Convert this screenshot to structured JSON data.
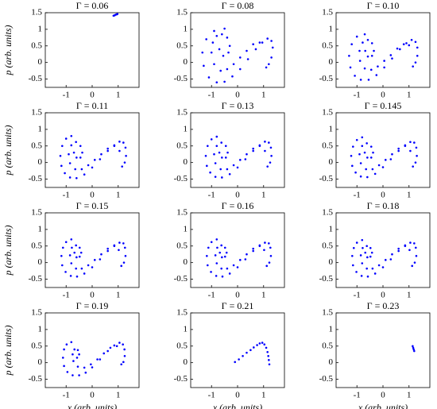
{
  "chart_data": [
    {
      "type": "scatter",
      "title": "Γ = 0.06",
      "ylabel": "p (arb. units)",
      "color": "#0000ff",
      "x": [
        0.82,
        0.86,
        0.9,
        0.94,
        0.97
      ],
      "values": [
        1.41,
        1.42,
        1.44,
        1.45,
        1.46
      ],
      "xlim": [
        -1.8,
        1.8
      ],
      "ylim": [
        -0.75,
        1.5
      ],
      "xticks": [
        -1,
        0,
        1
      ],
      "yticks": [
        -0.5,
        0,
        0.5,
        1,
        1.5
      ]
    },
    {
      "type": "scatter",
      "title": "Γ = 0.08",
      "color": "#0000ff",
      "x": [
        -0.5,
        -0.9,
        -1.2,
        -1.35,
        -1.3,
        -1.1,
        -0.8,
        -0.5,
        -0.2,
        0.1,
        0.4,
        0.7,
        0.95,
        1.15,
        1.3,
        1.35,
        1.3,
        1.2,
        1.1,
        0.85,
        0.6,
        0.35,
        0.1,
        -0.15,
        -0.4,
        -0.65,
        -0.9,
        -1.0,
        -0.95,
        -0.8,
        -0.6,
        -0.4,
        -0.3,
        -0.35,
        -0.55,
        -0.7
      ],
      "values": [
        1.02,
        0.95,
        0.7,
        0.3,
        -0.1,
        -0.45,
        -0.6,
        -0.58,
        -0.42,
        -0.2,
        0.1,
        0.4,
        0.6,
        0.72,
        0.65,
        0.45,
        0.15,
        -0.05,
        -0.15,
        0.6,
        0.55,
        0.35,
        0.15,
        -0.05,
        -0.2,
        -0.25,
        -0.05,
        0.3,
        0.6,
        0.8,
        0.85,
        0.75,
        0.5,
        0.3,
        0.2,
        0.4
      ],
      "xlim": [
        -1.8,
        1.8
      ],
      "ylim": [
        -0.75,
        1.5
      ],
      "xticks": [
        -1,
        0,
        1
      ],
      "yticks": [
        -0.5,
        0,
        0.5,
        1,
        1.5
      ]
    },
    {
      "type": "scatter",
      "title": "Γ = 0.10",
      "color": "#0000ff",
      "x": [
        -0.7,
        -1.0,
        -1.2,
        -1.3,
        -1.25,
        -1.08,
        -0.85,
        -0.55,
        -0.25,
        0.05,
        0.35,
        0.65,
        0.9,
        1.1,
        1.25,
        1.32,
        1.32,
        1.25,
        1.15,
        1.0,
        0.8,
        0.55,
        0.3,
        0.05,
        -0.2,
        -0.45,
        -0.7,
        -0.88,
        -0.9,
        -0.78,
        -0.58,
        -0.42,
        -0.35,
        -0.42,
        -0.58,
        -0.68
      ],
      "values": [
        0.85,
        0.78,
        0.55,
        0.2,
        -0.15,
        -0.4,
        -0.52,
        -0.52,
        -0.38,
        -0.15,
        0.12,
        0.4,
        0.58,
        0.68,
        0.62,
        0.45,
        0.2,
        0.0,
        -0.12,
        0.52,
        0.55,
        0.42,
        0.22,
        0.05,
        -0.12,
        -0.22,
        -0.18,
        0.05,
        0.35,
        0.6,
        0.68,
        0.58,
        0.35,
        0.2,
        0.18,
        0.35
      ],
      "xlim": [
        -1.8,
        1.8
      ],
      "ylim": [
        -0.75,
        1.5
      ],
      "xticks": [
        -1,
        0,
        1
      ],
      "yticks": [
        -0.5,
        0,
        0.5,
        1,
        1.5
      ]
    },
    {
      "type": "scatter",
      "title": "Γ = 0.11",
      "ylabel": "p (arb. units)",
      "color": "#0000ff",
      "x": [
        -0.8,
        -1.0,
        -1.15,
        -1.22,
        -1.18,
        -1.05,
        -0.85,
        -0.6,
        -0.3,
        0,
        0.3,
        0.6,
        0.85,
        1.05,
        1.2,
        1.28,
        1.3,
        1.25,
        1.15,
        1.05,
        0.85,
        0.6,
        0.35,
        0.1,
        -0.15,
        -0.4,
        -0.65,
        -0.85,
        -0.9,
        -0.8,
        -0.62,
        -0.45,
        -0.38,
        -0.45,
        -0.6,
        -0.7
      ],
      "values": [
        0.8,
        0.72,
        0.5,
        0.2,
        -0.1,
        -0.32,
        -0.45,
        -0.47,
        -0.36,
        -0.15,
        0.1,
        0.35,
        0.52,
        0.63,
        0.6,
        0.45,
        0.2,
        0.0,
        -0.12,
        0.35,
        0.5,
        0.42,
        0.25,
        0.08,
        -0.08,
        -0.2,
        -0.2,
        -0.02,
        0.25,
        0.52,
        0.62,
        0.5,
        0.3,
        0.15,
        0.15,
        0.3
      ],
      "xlim": [
        -1.8,
        1.8
      ],
      "ylim": [
        -0.75,
        1.5
      ],
      "xticks": [
        -1,
        0,
        1
      ],
      "yticks": [
        -0.5,
        0,
        0.5,
        1,
        1.5
      ]
    },
    {
      "type": "scatter",
      "title": "Γ = 0.13",
      "color": "#0000ff",
      "x": [
        -0.8,
        -1.0,
        -1.15,
        -1.22,
        -1.18,
        -1.05,
        -0.85,
        -0.6,
        -0.3,
        0,
        0.3,
        0.6,
        0.85,
        1.05,
        1.2,
        1.28,
        1.3,
        1.25,
        1.15,
        1.05,
        0.85,
        0.6,
        0.35,
        0.1,
        -0.15,
        -0.4,
        -0.65,
        -0.85,
        -0.9,
        -0.8,
        -0.62,
        -0.45,
        -0.38,
        -0.45,
        -0.6,
        -0.7
      ],
      "values": [
        0.78,
        0.7,
        0.5,
        0.2,
        -0.1,
        -0.3,
        -0.43,
        -0.45,
        -0.35,
        -0.15,
        0.1,
        0.35,
        0.52,
        0.63,
        0.6,
        0.45,
        0.2,
        0.0,
        -0.12,
        0.35,
        0.5,
        0.42,
        0.25,
        0.08,
        -0.08,
        -0.2,
        -0.2,
        -0.02,
        0.25,
        0.5,
        0.6,
        0.5,
        0.3,
        0.15,
        0.15,
        0.3
      ],
      "xlim": [
        -1.8,
        1.8
      ],
      "ylim": [
        -0.75,
        1.5
      ],
      "xticks": [
        -1,
        0,
        1
      ],
      "yticks": [
        -0.5,
        0,
        0.5,
        1,
        1.5
      ]
    },
    {
      "type": "scatter",
      "title": "Γ = 0.145",
      "color": "#0000ff",
      "x": [
        -0.8,
        -1.0,
        -1.15,
        -1.22,
        -1.18,
        -1.05,
        -0.85,
        -0.6,
        -0.3,
        0,
        0.3,
        0.6,
        0.85,
        1.05,
        1.2,
        1.28,
        1.3,
        1.25,
        1.15,
        1.05,
        0.85,
        0.6,
        0.35,
        0.1,
        -0.15,
        -0.4,
        -0.65,
        -0.85,
        -0.9,
        -0.8,
        -0.62,
        -0.45,
        -0.38,
        -0.45,
        -0.6,
        -0.7
      ],
      "values": [
        0.76,
        0.68,
        0.48,
        0.2,
        -0.1,
        -0.3,
        -0.42,
        -0.44,
        -0.34,
        -0.14,
        0.1,
        0.35,
        0.52,
        0.62,
        0.6,
        0.45,
        0.2,
        0.0,
        -0.12,
        0.35,
        0.5,
        0.42,
        0.25,
        0.08,
        -0.08,
        -0.2,
        -0.2,
        -0.02,
        0.25,
        0.5,
        0.58,
        0.48,
        0.3,
        0.15,
        0.15,
        0.3
      ],
      "xlim": [
        -1.8,
        1.8
      ],
      "ylim": [
        -0.75,
        1.5
      ],
      "xticks": [
        -1,
        0,
        1
      ],
      "yticks": [
        -0.5,
        0,
        0.5,
        1,
        1.5
      ]
    },
    {
      "type": "scatter",
      "title": "Γ = 0.15",
      "ylabel": "p (arb. units)",
      "color": "#0000ff",
      "x": [
        -0.8,
        -1.0,
        -1.12,
        -1.18,
        -1.15,
        -1.02,
        -0.82,
        -0.58,
        -0.3,
        0,
        0.3,
        0.6,
        0.85,
        1.05,
        1.2,
        1.26,
        1.28,
        1.22,
        1.12,
        1.02,
        0.85,
        0.6,
        0.35,
        0.1,
        -0.15,
        -0.4,
        -0.62,
        -0.8,
        -0.85,
        -0.78,
        -0.62,
        -0.48,
        -0.42,
        -0.48,
        -0.6,
        -0.68
      ],
      "values": [
        0.7,
        0.62,
        0.45,
        0.2,
        -0.08,
        -0.28,
        -0.4,
        -0.42,
        -0.33,
        -0.14,
        0.1,
        0.35,
        0.52,
        0.6,
        0.58,
        0.45,
        0.2,
        0.0,
        -0.1,
        0.38,
        0.5,
        0.42,
        0.25,
        0.08,
        -0.08,
        -0.18,
        -0.18,
        -0.02,
        0.22,
        0.45,
        0.52,
        0.45,
        0.3,
        0.18,
        0.16,
        0.3
      ],
      "xlim": [
        -1.8,
        1.8
      ],
      "ylim": [
        -0.75,
        1.5
      ],
      "xticks": [
        -1,
        0,
        1
      ],
      "yticks": [
        -0.5,
        0,
        0.5,
        1,
        1.5
      ]
    },
    {
      "type": "scatter",
      "title": "Γ = 0.16",
      "color": "#0000ff",
      "x": [
        -0.8,
        -1.0,
        -1.12,
        -1.18,
        -1.15,
        -1.02,
        -0.82,
        -0.58,
        -0.3,
        0,
        0.3,
        0.6,
        0.85,
        1.05,
        1.2,
        1.26,
        1.28,
        1.22,
        1.12,
        1.02,
        0.85,
        0.6,
        0.35,
        0.1,
        -0.15,
        -0.4,
        -0.62,
        -0.8,
        -0.85,
        -0.78,
        -0.62,
        -0.48,
        -0.42,
        -0.48,
        -0.6,
        -0.68
      ],
      "values": [
        0.7,
        0.62,
        0.45,
        0.2,
        -0.08,
        -0.28,
        -0.4,
        -0.42,
        -0.33,
        -0.14,
        0.1,
        0.35,
        0.52,
        0.6,
        0.58,
        0.45,
        0.2,
        0.0,
        -0.1,
        0.38,
        0.5,
        0.42,
        0.25,
        0.08,
        -0.08,
        -0.18,
        -0.18,
        -0.02,
        0.22,
        0.45,
        0.52,
        0.45,
        0.3,
        0.18,
        0.16,
        0.3
      ],
      "xlim": [
        -1.8,
        1.8
      ],
      "ylim": [
        -0.75,
        1.5
      ],
      "xticks": [
        -1,
        0,
        1
      ],
      "yticks": [
        -0.5,
        0,
        0.5,
        1,
        1.5
      ]
    },
    {
      "type": "scatter",
      "title": "Γ = 0.18",
      "color": "#0000ff",
      "x": [
        -0.8,
        -1.0,
        -1.12,
        -1.18,
        -1.15,
        -1.02,
        -0.82,
        -0.58,
        -0.3,
        0,
        0.3,
        0.6,
        0.85,
        1.05,
        1.2,
        1.26,
        1.28,
        1.22,
        1.12,
        1.02,
        0.85,
        0.6,
        0.35,
        0.1,
        -0.15,
        -0.4,
        -0.62,
        -0.8,
        -0.85,
        -0.78,
        -0.62,
        -0.48,
        -0.42,
        -0.48,
        -0.6,
        -0.68
      ],
      "values": [
        0.68,
        0.6,
        0.44,
        0.2,
        -0.08,
        -0.28,
        -0.4,
        -0.42,
        -0.33,
        -0.14,
        0.1,
        0.35,
        0.52,
        0.6,
        0.58,
        0.45,
        0.2,
        0.0,
        -0.1,
        0.38,
        0.5,
        0.42,
        0.25,
        0.08,
        -0.08,
        -0.18,
        -0.18,
        -0.02,
        0.22,
        0.44,
        0.5,
        0.44,
        0.3,
        0.18,
        0.16,
        0.3
      ],
      "xlim": [
        -1.8,
        1.8
      ],
      "ylim": [
        -0.75,
        1.5
      ],
      "xticks": [
        -1,
        0,
        1
      ],
      "yticks": [
        -0.5,
        0,
        0.5,
        1,
        1.5
      ]
    },
    {
      "type": "scatter",
      "title": "Γ = 0.19",
      "xlabel": "x (arb. units)",
      "ylabel": "p (arb. units)",
      "color": "#0000ff",
      "x": [
        -0.8,
        -0.98,
        -1.08,
        -1.12,
        -1.08,
        -0.95,
        -0.75,
        -0.5,
        -0.25,
        0,
        0.3,
        0.6,
        0.85,
        1.05,
        1.18,
        1.24,
        1.25,
        1.2,
        1.12,
        0.95,
        0.7,
        0.45,
        0.2,
        -0.05,
        -0.3,
        -0.55,
        -0.72,
        -0.75,
        -0.68,
        -0.55,
        -0.5,
        -0.58
      ],
      "values": [
        0.62,
        0.55,
        0.4,
        0.15,
        -0.1,
        -0.28,
        -0.38,
        -0.38,
        -0.3,
        -0.14,
        0.1,
        0.35,
        0.52,
        0.6,
        0.55,
        0.4,
        0.2,
        0.02,
        -0.05,
        0.5,
        0.45,
        0.28,
        0.1,
        -0.05,
        -0.15,
        -0.12,
        0.05,
        0.25,
        0.4,
        0.38,
        0.25,
        0.15
      ],
      "xlim": [
        -1.8,
        1.8
      ],
      "ylim": [
        -0.75,
        1.5
      ],
      "xticks": [
        -1,
        0,
        1
      ],
      "yticks": [
        -0.5,
        0,
        0.5,
        1,
        1.5
      ]
    },
    {
      "type": "scatter",
      "title": "Γ = 0.21",
      "xlabel": "x (arb. units)",
      "color": "#0000ff",
      "x": [
        -0.1,
        0.05,
        0.2,
        0.35,
        0.5,
        0.62,
        0.75,
        0.85,
        0.95,
        1.03,
        1.1,
        1.15,
        1.18,
        1.2,
        1.22
      ],
      "values": [
        0.02,
        0.1,
        0.2,
        0.3,
        0.38,
        0.46,
        0.53,
        0.58,
        0.6,
        0.55,
        0.45,
        0.32,
        0.2,
        0.08,
        -0.05
      ],
      "xlim": [
        -1.8,
        1.8
      ],
      "ylim": [
        -0.75,
        1.5
      ],
      "xticks": [
        -1,
        0,
        1
      ],
      "yticks": [
        -0.5,
        0,
        0.5,
        1,
        1.5
      ]
    },
    {
      "type": "scatter",
      "title": "Γ = 0.23",
      "xlabel": "x (arb. units)",
      "color": "#0000ff",
      "x": [
        1.14,
        1.16,
        1.18,
        1.2
      ],
      "values": [
        0.5,
        0.45,
        0.4,
        0.35
      ],
      "xlim": [
        -1.8,
        1.8
      ],
      "ylim": [
        -0.75,
        1.5
      ],
      "xticks": [
        -1,
        0,
        1
      ],
      "yticks": [
        -0.5,
        0,
        0.5,
        1,
        1.5
      ]
    }
  ]
}
